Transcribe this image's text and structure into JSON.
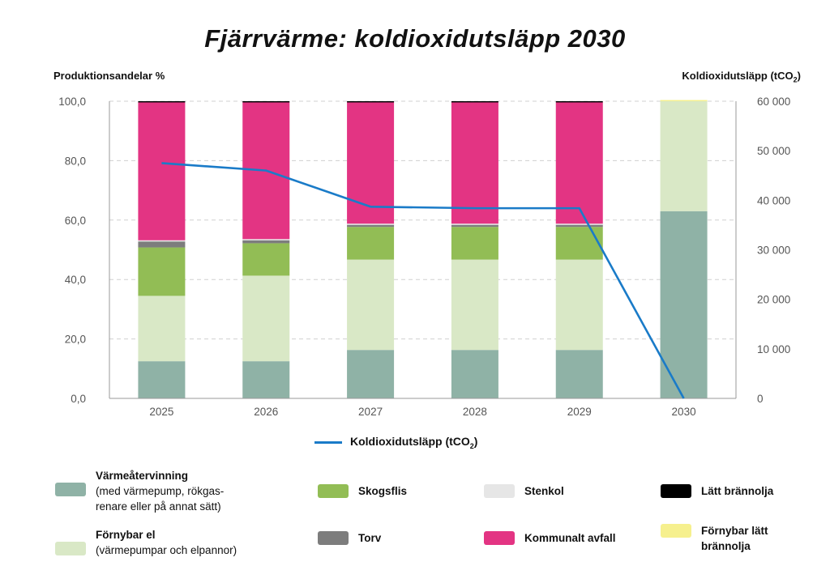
{
  "title": "Fjärrvärme: koldioxidutsläpp 2030",
  "left_axis_title": "Produktionsandelar %",
  "right_axis_title": "Koldioxidutsläpp (tCO",
  "right_axis_title_sub": "2",
  "right_axis_title_end": ")",
  "line_legend": {
    "label": "Koldioxidutsläpp (tCO",
    "sub": "2",
    "end": ")",
    "color": "#1a7bc8"
  },
  "legend": [
    {
      "name": "Värmeåtervinning",
      "desc": "(med värmepump, rökgas-\nrenare eller på annat sätt)",
      "color": "#8fb2a6"
    },
    {
      "name": "Förnybar el",
      "desc": "(värmepumpar och elpannor)",
      "color": "#d9e8c6"
    },
    {
      "name": "Skogsflis",
      "desc": "",
      "color": "#92bd55"
    },
    {
      "name": "Torv",
      "desc": "",
      "color": "#7d7d7d"
    },
    {
      "name": "Stenkol",
      "desc": "",
      "color": "#e6e6e6"
    },
    {
      "name": "Kommunalt avfall",
      "desc": "",
      "color": "#e33483"
    },
    {
      "name": "Lätt brännolja",
      "desc": "",
      "color": "#000000"
    },
    {
      "name": "Förnybar lätt brännolja",
      "desc": "",
      "color": "#f6f08e"
    }
  ],
  "chart_data": {
    "type": "bar",
    "stacked": true,
    "categories": [
      "2025",
      "2026",
      "2027",
      "2028",
      "2029",
      "2030"
    ],
    "left_ticks": [
      "0,0",
      "20,0",
      "40,0",
      "60,0",
      "80,0",
      "100,0"
    ],
    "right_ticks": [
      "0",
      "10 000",
      "20 000",
      "30 000",
      "40 000",
      "50 000",
      "60 000"
    ],
    "ylim_left": [
      0,
      100
    ],
    "ylim_right": [
      0,
      60000
    ],
    "grid": "dashed horizontal",
    "series": [
      {
        "name": "Värmeåtervinning",
        "color": "#8fb2a6",
        "values": [
          12.5,
          12.5,
          16.3,
          16.3,
          16.3,
          63.0
        ]
      },
      {
        "name": "Förnybar el",
        "color": "#d9e8c6",
        "values": [
          22.0,
          28.8,
          30.4,
          30.4,
          30.4,
          37.0
        ]
      },
      {
        "name": "Skogsflis",
        "color": "#92bd55",
        "values": [
          16.3,
          10.9,
          11.0,
          11.0,
          11.0,
          0
        ]
      },
      {
        "name": "Torv",
        "color": "#7d7d7d",
        "values": [
          2.0,
          1.0,
          0.7,
          0.7,
          0.7,
          0
        ]
      },
      {
        "name": "Stenkol",
        "color": "#e6e6e6",
        "values": [
          0.4,
          0.4,
          0.4,
          0.4,
          0.4,
          0
        ]
      },
      {
        "name": "Kommunalt avfall",
        "color": "#e33483",
        "values": [
          46.4,
          46.0,
          40.8,
          40.8,
          40.8,
          0
        ]
      },
      {
        "name": "Lätt brännolja",
        "color": "#000000",
        "values": [
          0.4,
          0.4,
          0.4,
          0.4,
          0.4,
          0
        ]
      },
      {
        "name": "Förnybar lätt brännolja",
        "color": "#f6f08e",
        "values": [
          0,
          0,
          0,
          0,
          0,
          0.4
        ]
      }
    ],
    "line": {
      "name": "Koldioxidutsläpp (tCO2)",
      "axis": "right",
      "color": "#1a7bc8",
      "values": [
        47500,
        46000,
        38700,
        38400,
        38400,
        0
      ]
    }
  }
}
